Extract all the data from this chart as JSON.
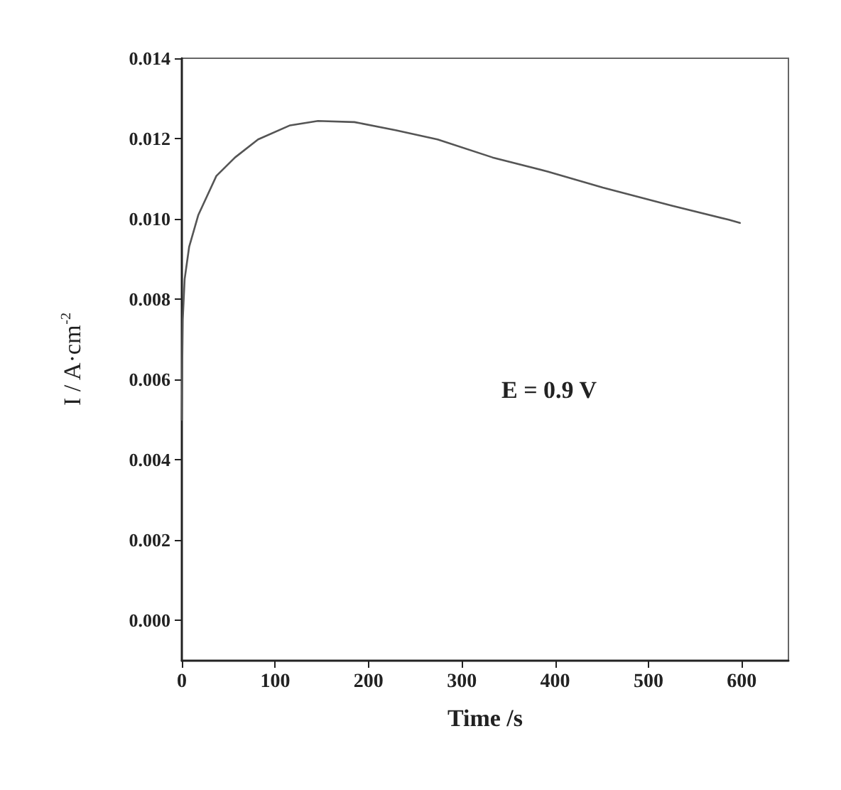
{
  "chart_data": {
    "type": "line",
    "xlabel": "Time /s",
    "ylabel": "I / A·cm$^{-2}$",
    "annotations": [
      "E = 0.9 V"
    ],
    "x": [
      0,
      0.5,
      1,
      3,
      7.8,
      17.7,
      37,
      57,
      81.7,
      116,
      145.8,
      185,
      229,
      274,
      333,
      392,
      451,
      525,
      586,
      598
    ],
    "series": [
      {
        "color": "#555555",
        "values": [
          0.005,
          0.0065,
          0.0075,
          0.0085,
          0.0093,
          0.0101,
          0.01107,
          0.01153,
          0.01198,
          0.01233,
          0.01244,
          0.01241,
          0.01221,
          0.01198,
          0.01153,
          0.01118,
          0.01078,
          0.01033,
          0.00998,
          0.0099
        ]
      }
    ],
    "xlim": [
      0,
      650
    ],
    "xticks": [
      0,
      100,
      200,
      300,
      400,
      500,
      600
    ],
    "ylim": [
      -0.001,
      0.014
    ],
    "yticks": [
      {
        "value": 0,
        "label": "0.000"
      },
      {
        "value": 0.002,
        "label": "0.002"
      },
      {
        "value": 0.004,
        "label": "0.004"
      },
      {
        "value": 0.006,
        "label": "0.006"
      },
      {
        "value": 0.008,
        "label": "0.008"
      },
      {
        "value": 0.01,
        "label": "0.010"
      },
      {
        "value": 0.012,
        "label": "0.012"
      },
      {
        "value": 0.014,
        "label": "0.014"
      }
    ],
    "marker": "none",
    "line_style": "solid"
  }
}
